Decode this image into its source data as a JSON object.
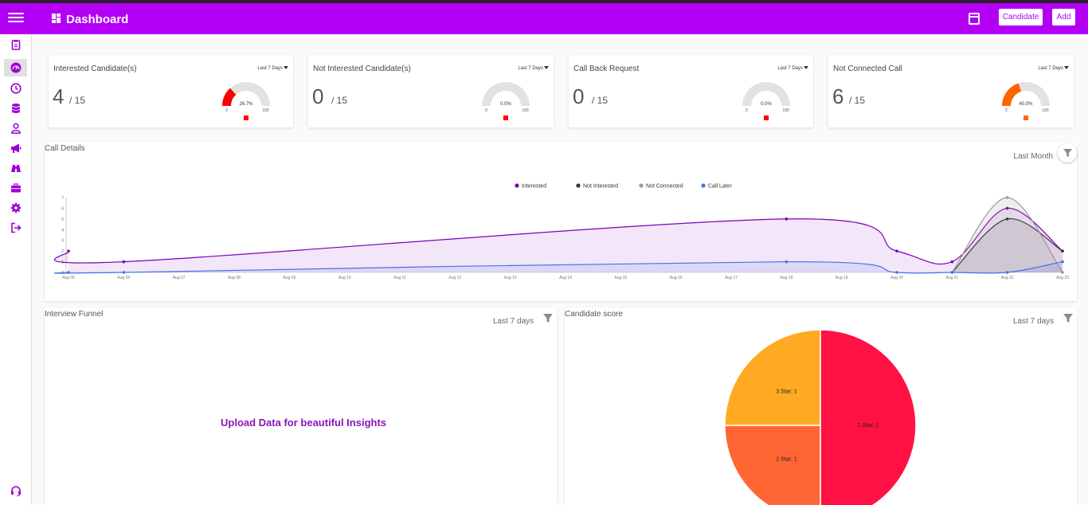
{
  "header": {
    "title": "Dashboard",
    "candidate_label": "Candidate",
    "add_label": "Add"
  },
  "sidebar": {
    "icons": [
      "clipboard-icon",
      "dashboard-gauge-icon",
      "clock-icon",
      "database-icon",
      "user-icon",
      "megaphone-icon",
      "binoculars-icon",
      "briefcase-icon",
      "settings-icon",
      "logout-icon"
    ],
    "footer_icon": "headset-icon"
  },
  "stats": [
    {
      "title": "Interested Candidate(s)",
      "range": "Last 7 Days",
      "value": "4",
      "total": "/ 15",
      "gauge": {
        "percent": 26.7,
        "label": "26.7%",
        "min": "0",
        "max": "100",
        "color": "#ff0000"
      }
    },
    {
      "title": "Not Interested Candidate(s)",
      "range": "Last 7 Days",
      "value": "0",
      "total": "/ 15",
      "gauge": {
        "percent": 0,
        "label": "0.0%",
        "min": "0",
        "max": "100",
        "color": "#ff0000"
      }
    },
    {
      "title": "Call Back Request",
      "range": "Last 7 Days",
      "value": "0",
      "total": "/ 15",
      "gauge": {
        "percent": 0,
        "label": "0.0%",
        "min": "0",
        "max": "100",
        "color": "#ff0000"
      }
    },
    {
      "title": "Not Connected Call",
      "range": "Last 7 Days",
      "value": "6",
      "total": "/ 15",
      "gauge": {
        "percent": 40,
        "label": "40.0%",
        "min": "0",
        "max": "100",
        "color": "#ff6600"
      }
    }
  ],
  "call_details": {
    "title": "Call Details",
    "range": "Last Month",
    "chart_data": {
      "type": "area",
      "categories": [
        "Aug 05",
        "Aug 06",
        "Aug 07",
        "Aug 08",
        "Aug 09",
        "Aug 10",
        "Aug 11",
        "Aug 12",
        "Aug 13",
        "Aug 14",
        "Aug 15",
        "Aug 16",
        "Aug 17",
        "Aug 18",
        "Aug 19",
        "Aug 20",
        "Aug 21",
        "Aug 22",
        "Aug 23"
      ],
      "ylim": [
        0,
        7
      ],
      "yticks": [
        "0",
        "1",
        "2",
        "3",
        "4",
        "5",
        "6",
        "7"
      ],
      "legend": "top-center",
      "series": [
        {
          "name": "Interested",
          "color": "#7a00b8",
          "points": [
            [
              0,
              2
            ],
            [
              1,
              1
            ],
            [
              13,
              5
            ],
            [
              15,
              2
            ],
            [
              16,
              1
            ],
            [
              17,
              6
            ],
            [
              18,
              2
            ]
          ]
        },
        {
          "name": "Not Interested",
          "color": "#333333",
          "points": [
            [
              16,
              0
            ],
            [
              17,
              5
            ],
            [
              18,
              2
            ]
          ]
        },
        {
          "name": "Not Connected",
          "color": "#999999",
          "points": [
            [
              16,
              0
            ],
            [
              17,
              7
            ],
            [
              18,
              0
            ]
          ]
        },
        {
          "name": "Call Later",
          "color": "#4472f0",
          "points": [
            [
              0,
              0
            ],
            [
              1,
              0
            ],
            [
              13,
              1
            ],
            [
              15,
              0
            ],
            [
              16,
              0
            ],
            [
              17,
              0
            ],
            [
              18,
              1
            ]
          ]
        }
      ]
    }
  },
  "funnel": {
    "title": "Interview Funnel",
    "range": "Last 7 days",
    "message": "Upload Data for beautiful Insights"
  },
  "score": {
    "title": "Candidate score",
    "range": "Last 7 days",
    "chart_data": {
      "type": "pie",
      "slices": [
        {
          "label": "1 Star: 2",
          "value": 2,
          "color": "#ff1144"
        },
        {
          "label": "2 Star: 1",
          "value": 1,
          "color": "#ff6633"
        },
        {
          "label": "3 Star: 1",
          "value": 1,
          "color": "#ffaa22"
        }
      ]
    }
  }
}
